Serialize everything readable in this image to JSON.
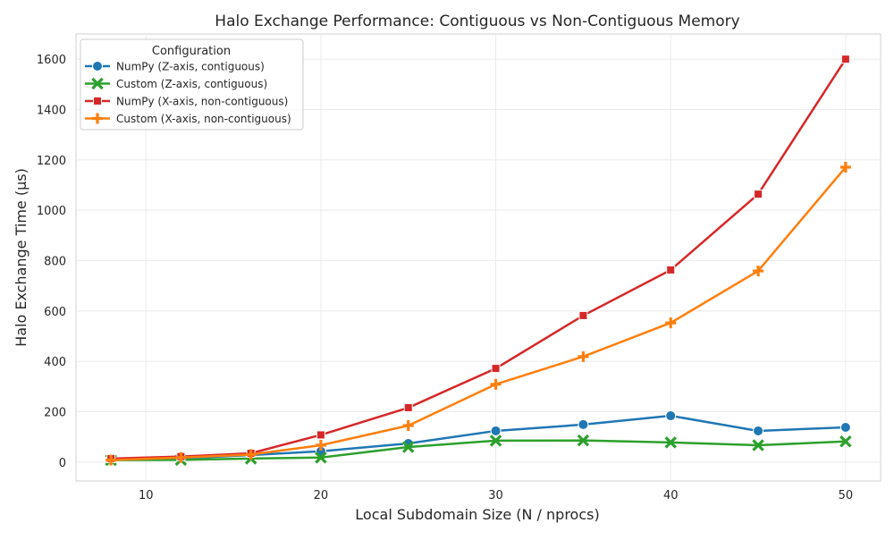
{
  "chart_data": {
    "type": "line",
    "title": "Halo Exchange Performance: Contiguous vs Non-Contiguous Memory",
    "xlabel": "Local Subdomain Size (N / nprocs)",
    "ylabel": "Halo Exchange Time (μs)",
    "xlim": [
      6,
      52
    ],
    "ylim": [
      -75,
      1700
    ],
    "xticks": [
      10,
      20,
      30,
      40,
      50
    ],
    "yticks": [
      0,
      200,
      400,
      600,
      800,
      1000,
      1200,
      1400,
      1600
    ],
    "grid": true,
    "legend": {
      "title": "Configuration",
      "placement": "top-left"
    },
    "x": [
      8,
      12,
      16,
      20,
      25,
      30,
      35,
      40,
      45,
      50
    ],
    "series": [
      {
        "name": "NumPy (Z-axis, contiguous)",
        "color": "#1f77b4",
        "marker": "circle",
        "values": [
          10,
          15,
          28,
          43,
          74,
          124,
          149,
          184,
          124,
          138
        ]
      },
      {
        "name": "Custom (Z-axis, contiguous)",
        "color": "#2ca02c",
        "marker": "x",
        "values": [
          8,
          9,
          14,
          18,
          60,
          85,
          86,
          78,
          67,
          82
        ]
      },
      {
        "name": "NumPy (X-axis, non-contiguous)",
        "color": "#d62728",
        "marker": "square",
        "values": [
          14,
          22,
          35,
          108,
          216,
          372,
          582,
          763,
          1064,
          1600
        ]
      },
      {
        "name": "Custom (X-axis, non-contiguous)",
        "color": "#ff7f0e",
        "marker": "plus",
        "values": [
          8,
          18,
          30,
          67,
          145,
          309,
          419,
          553,
          759,
          1171
        ]
      }
    ]
  }
}
